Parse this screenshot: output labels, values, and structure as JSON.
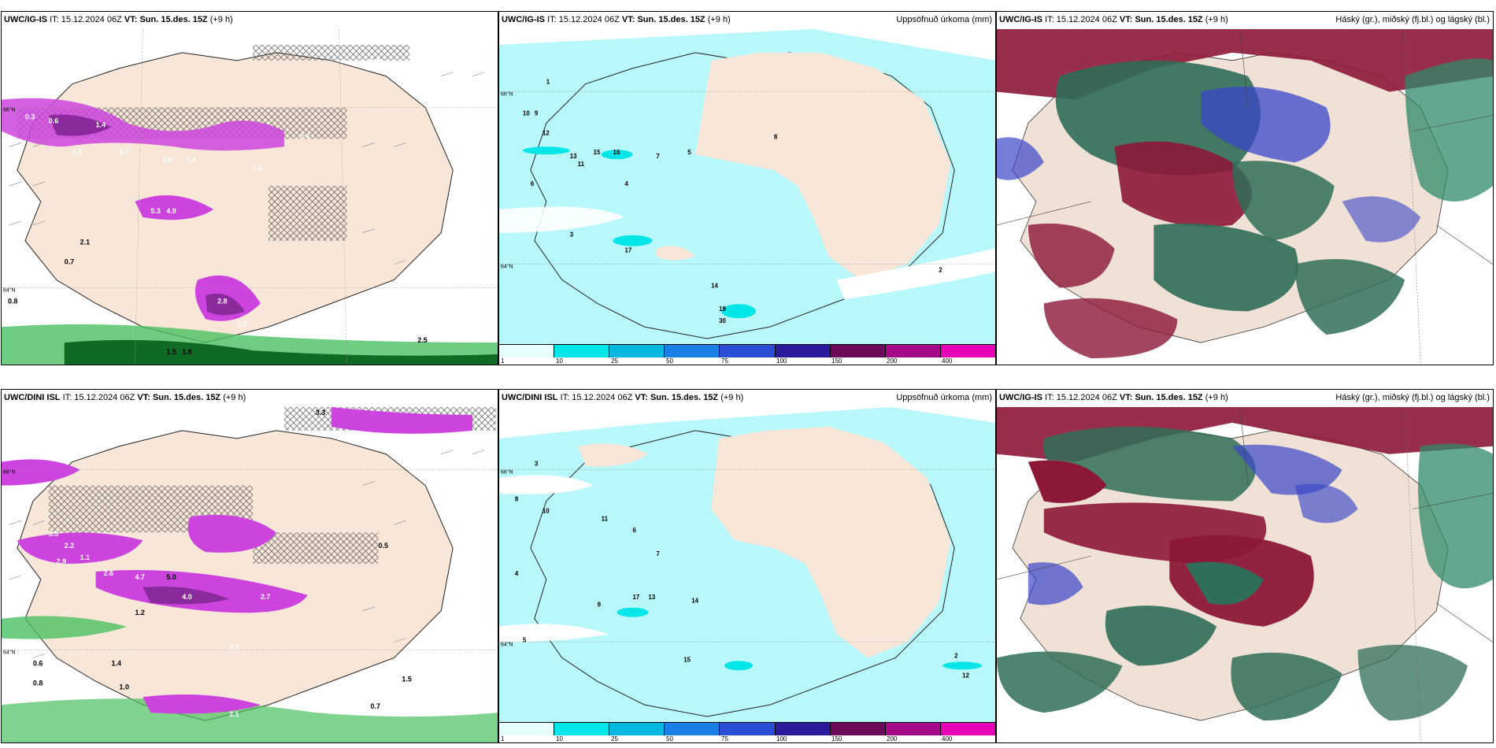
{
  "panels": [
    {
      "model": "UWC/IG-IS",
      "it_label": "IT:",
      "it": "15.12.2024 06Z",
      "vt_label": "VT:",
      "vt": "Sun. 15.des. 15Z",
      "lead": "(+9 h)",
      "unit": ""
    },
    {
      "model": "UWC/IG-IS",
      "it_label": "IT:",
      "it": "15.12.2024 06Z",
      "vt_label": "VT:",
      "vt": "Sun. 15.des. 15Z",
      "lead": "(+9 h)",
      "unit": "Uppsöfnuð úrkoma (mm)"
    },
    {
      "model": "UWC/IG-IS",
      "it_label": "IT:",
      "it": "15.12.2024 06Z",
      "vt_label": "VT:",
      "vt": "Sun. 15.des. 15Z",
      "lead": "(+9 h)",
      "unit": "Háský (gr.), miðský (fj.bl.) og lágský (bl.)"
    },
    {
      "model": "UWC/DINI ISL",
      "it_label": "IT:",
      "it": "15.12.2024 06Z",
      "vt_label": "VT:",
      "vt": "Sun. 15.des. 15Z",
      "lead": "(+9 h)",
      "unit": ""
    },
    {
      "model": "UWC/DINI ISL",
      "it_label": "IT:",
      "it": "15.12.2024 06Z",
      "vt_label": "VT:",
      "vt": "Sun. 15.des. 15Z",
      "lead": "(+9 h)",
      "unit": "Uppsöfnuð úrkoma (mm)"
    },
    {
      "model": "UWC/IG-IS",
      "it_label": "IT:",
      "it": "15.12.2024 06Z",
      "vt_label": "VT:",
      "vt": "Sun. 15.des. 15Z",
      "lead": "(+9 h)",
      "unit": "Háský (gr.), miðský (fj.bl.) og lágský (bl.)"
    }
  ],
  "legend": {
    "ticks": [
      "1",
      "10",
      "25",
      "50",
      "75",
      "100",
      "150",
      "200",
      "400"
    ],
    "colors": [
      "#e6fffe",
      "#00e5e8",
      "#00b8e0",
      "#1a7fe6",
      "#2a4fd6",
      "#2a1a9c",
      "#6e0a5a",
      "#a40a8a",
      "#e600b8",
      "#f4b0f2"
    ]
  },
  "map_labels": {
    "lat_top": "66°N",
    "lat_bottom": "64°N",
    "snow_values_top": [
      "0.3",
      "0.6",
      "1.1",
      "1.4",
      "2.7",
      "3.0",
      "2.4",
      "1.5",
      "0.4",
      "5.3",
      "4.9",
      "2.8",
      "3.3",
      "2.0",
      "0.8",
      "1.5",
      "1.8",
      "2.1",
      "0.7",
      "2.5"
    ],
    "snow_values_bottom": [
      "3.5",
      "2.2",
      "1.1",
      "2.9",
      "2.6",
      "4.7",
      "5.0",
      "4.0",
      "2.7",
      "1.2",
      "0.5",
      "1.4",
      "0.6",
      "0.8",
      "1.0",
      "2.1",
      "1.5",
      "0.7",
      "2.0",
      "3.3"
    ],
    "precip_values_top": [
      "1",
      "10",
      "9",
      "12",
      "13",
      "15",
      "16",
      "11",
      "7",
      "5",
      "4",
      "3",
      "6",
      "17",
      "14",
      "2",
      "8",
      "19",
      "30"
    ],
    "precip_values_bottom": [
      "3",
      "8",
      "10",
      "11",
      "4",
      "5",
      "6",
      "7",
      "13",
      "14",
      "17",
      "15",
      "12",
      "2",
      "9"
    ]
  },
  "colors": {
    "land": "#f8e6d8",
    "land_grey": "#efe1d6",
    "snow_magenta": "#cc44dd",
    "snow_purple": "#8a2a9c",
    "rain_green": "#4ac060",
    "rain_darkgreen": "#0e6a24",
    "precip_cyan": "#b8f8fa",
    "cloud_high": "#2f6e58",
    "cloud_mid": "#8c1838",
    "cloud_low": "#3a46c8"
  }
}
